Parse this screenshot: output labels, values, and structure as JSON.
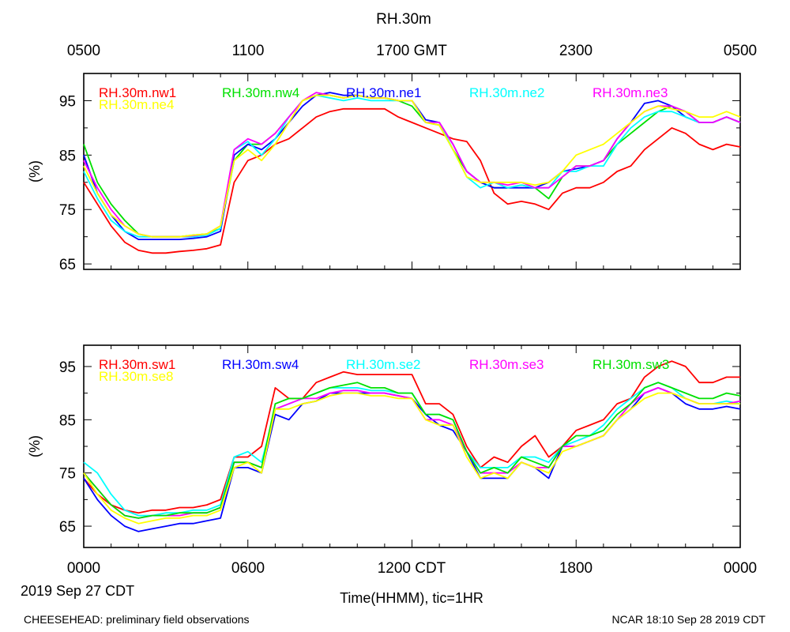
{
  "title": "RH.30m",
  "top_axis_ticks": [
    "0500",
    "1100",
    "1700 GMT",
    "2300",
    "0500"
  ],
  "bottom_axis_ticks": [
    "0000",
    "0600",
    "1200 CDT",
    "1800",
    "0000"
  ],
  "date_label": "2019 Sep 27 CDT",
  "xlabel": "Time(HHMM), tic=1HR",
  "footer_left": "CHEESEHEAD: preliminary field observations",
  "footer_right": "NCAR 18:10 Sep 28 2019 CDT",
  "chart_data": [
    {
      "type": "line",
      "ylabel": "(%)",
      "xlim": [
        0,
        24
      ],
      "ylim": [
        64,
        100
      ],
      "yticks": [
        65,
        75,
        85,
        95
      ],
      "x_unit": "hours since 0000 CDT",
      "x": [
        0,
        0.5,
        1,
        1.5,
        2,
        2.5,
        3,
        3.5,
        4,
        4.5,
        5,
        5.5,
        6,
        6.5,
        7,
        7.5,
        8,
        8.5,
        9,
        9.5,
        10,
        10.5,
        11,
        11.5,
        12,
        12.5,
        13,
        13.5,
        14,
        14.5,
        15,
        15.5,
        16,
        16.5,
        17,
        17.5,
        18,
        18.5,
        19,
        19.5,
        20,
        20.5,
        21,
        21.5,
        22,
        22.5,
        23,
        23.5,
        24
      ],
      "series": [
        {
          "name": "RH.30m.nw1",
          "color": "#ff0000",
          "values": [
            80,
            76,
            72,
            69,
            67.5,
            67,
            67,
            67.3,
            67.5,
            67.8,
            68.5,
            80,
            84,
            85,
            87,
            88,
            90,
            92,
            93,
            93.5,
            93.5,
            93.5,
            93.5,
            92,
            91,
            90,
            89,
            88,
            87.5,
            84,
            78,
            76,
            76.5,
            76,
            75,
            78,
            79,
            79,
            80,
            82,
            83,
            86,
            88,
            90,
            89,
            87,
            86,
            87,
            86.5
          ]
        },
        {
          "name": "RH.30m.nw4",
          "color": "#00e000",
          "values": [
            87,
            80,
            76,
            73,
            70.5,
            70,
            70,
            70,
            70.3,
            70.5,
            71.5,
            84,
            87,
            87,
            89,
            92,
            95,
            96,
            96,
            95.5,
            96,
            95.5,
            95.5,
            95,
            94,
            91,
            90.5,
            86,
            82,
            80,
            79,
            79,
            79.5,
            79,
            77,
            81,
            83,
            83,
            84,
            87,
            89,
            91,
            93,
            94,
            93,
            91,
            91,
            92,
            91
          ]
        },
        {
          "name": "RH.30m.ne1",
          "color": "#0000ff",
          "values": [
            85,
            78,
            74,
            71,
            69.5,
            69.5,
            69.5,
            69.5,
            69.7,
            70,
            71,
            85,
            87,
            86,
            88,
            91,
            94,
            96,
            96.5,
            96,
            96,
            95.5,
            95.5,
            95,
            95,
            91.5,
            91,
            87,
            82,
            80,
            79,
            79,
            79,
            79,
            80,
            82,
            82.5,
            83,
            84,
            88,
            91,
            94.5,
            95,
            94,
            92,
            91,
            91,
            92,
            91
          ]
        },
        {
          "name": "RH.30m.ne2",
          "color": "#00ffff",
          "values": [
            82,
            77,
            73,
            71,
            70,
            70,
            70,
            70,
            70,
            70.3,
            71.5,
            86,
            87.5,
            85,
            88,
            92,
            95,
            96,
            95.5,
            95,
            95.5,
            95,
            95,
            95,
            95,
            91,
            91,
            86,
            81,
            79,
            80,
            79,
            79.5,
            79,
            79,
            82,
            82,
            83,
            83,
            87,
            90,
            92,
            93,
            93,
            92,
            91,
            91,
            92,
            91
          ]
        },
        {
          "name": "RH.30m.ne3",
          "color": "#ff00ff",
          "values": [
            84,
            79,
            75,
            72,
            70.5,
            70,
            70,
            70,
            70.2,
            70.5,
            72,
            86,
            88,
            87,
            89,
            92,
            95,
            96.5,
            96,
            95.5,
            96,
            95.5,
            95.5,
            95,
            95,
            91,
            91,
            87,
            82,
            80,
            80,
            79.5,
            80,
            79,
            79,
            81,
            83,
            83,
            84,
            88,
            91,
            93,
            94,
            94,
            93,
            91,
            91,
            92,
            91
          ]
        },
        {
          "name": "RH.30m.ne4",
          "color": "#ffff00",
          "values": [
            83,
            78,
            74,
            72,
            70.5,
            70,
            70,
            70,
            70.3,
            70.5,
            72,
            84,
            86,
            84,
            87,
            91,
            95,
            96,
            96,
            95.5,
            96,
            95.5,
            95.5,
            95,
            95,
            91,
            90.5,
            86,
            81,
            80,
            80,
            80,
            80,
            79.5,
            80,
            82,
            85,
            86,
            87,
            89,
            91,
            93,
            94,
            93.5,
            93,
            92,
            92,
            93,
            92
          ]
        }
      ]
    },
    {
      "type": "line",
      "ylabel": "(%)",
      "xlim": [
        0,
        24
      ],
      "ylim": [
        61,
        99
      ],
      "yticks": [
        65,
        75,
        85,
        95
      ],
      "x_unit": "hours since 0000 CDT",
      "x": [
        0,
        0.5,
        1,
        1.5,
        2,
        2.5,
        3,
        3.5,
        4,
        4.5,
        5,
        5.5,
        6,
        6.5,
        7,
        7.5,
        8,
        8.5,
        9,
        9.5,
        10,
        10.5,
        11,
        11.5,
        12,
        12.5,
        13,
        13.5,
        14,
        14.5,
        15,
        15.5,
        16,
        16.5,
        17,
        17.5,
        18,
        18.5,
        19,
        19.5,
        20,
        20.5,
        21,
        21.5,
        22,
        22.5,
        23,
        23.5,
        24
      ],
      "series": [
        {
          "name": "RH.30m.sw1",
          "color": "#ff0000",
          "values": [
            74,
            71,
            69,
            68,
            67.5,
            68,
            68,
            68.5,
            68.5,
            69,
            70,
            78,
            78,
            80,
            91,
            89,
            89,
            92,
            93,
            94,
            93.5,
            93.5,
            93.5,
            93.5,
            93.5,
            88,
            88,
            86,
            80,
            76,
            78,
            77,
            80,
            82,
            78,
            80,
            83,
            84,
            85,
            88,
            89,
            93,
            95,
            96,
            95,
            92,
            92,
            93,
            93
          ]
        },
        {
          "name": "RH.30m.sw4",
          "color": "#0000ff",
          "values": [
            74,
            70,
            67,
            65,
            64,
            64.5,
            65,
            65.5,
            65.5,
            66,
            66.5,
            76,
            76,
            75,
            86,
            85,
            88,
            88.5,
            90,
            90,
            90,
            90,
            90,
            89.5,
            89,
            86,
            84,
            83,
            79,
            74,
            74,
            74,
            77,
            76,
            74,
            80,
            80,
            81,
            82,
            85,
            87,
            90,
            91,
            90,
            88,
            87,
            87,
            87.5,
            87
          ]
        },
        {
          "name": "RH.30m.se2",
          "color": "#00ffff",
          "values": [
            77,
            75,
            71,
            68,
            67,
            67,
            67.5,
            67.5,
            68,
            68,
            69,
            78,
            79,
            77,
            87,
            88,
            89,
            90,
            91,
            91,
            91,
            90.5,
            90.5,
            90,
            90,
            86,
            86,
            85,
            79,
            76,
            76,
            76,
            78,
            78,
            77,
            80,
            81,
            82,
            84,
            87,
            89,
            91,
            92,
            91,
            89,
            88,
            88,
            88.5,
            88
          ]
        },
        {
          "name": "RH.30m.se3",
          "color": "#ff00ff",
          "values": [
            75,
            72,
            69,
            67,
            66.5,
            67,
            67,
            67,
            67.5,
            67.5,
            68.5,
            77,
            77,
            76,
            87,
            88,
            89,
            89,
            90,
            90.5,
            90.5,
            90,
            90,
            89.5,
            89,
            85,
            85,
            84,
            79,
            75,
            75,
            75,
            77,
            76,
            76,
            80,
            80,
            81,
            82,
            85,
            88,
            90,
            91,
            90,
            89,
            88,
            88,
            88,
            88.5
          ]
        },
        {
          "name": "RH.30m.sw3",
          "color": "#00e000",
          "values": [
            75,
            72,
            69,
            67,
            66.5,
            67,
            67,
            67.5,
            67.5,
            67.5,
            68.5,
            77,
            77,
            76,
            88,
            89,
            89,
            90,
            91,
            91.5,
            92,
            91,
            91,
            90,
            90,
            86,
            86,
            85,
            79,
            75,
            76,
            75,
            78,
            77,
            76,
            80,
            82,
            82,
            83,
            86,
            88,
            91,
            92,
            91,
            90,
            89,
            89,
            90,
            89.5
          ]
        },
        {
          "name": "RH.30m.se8",
          "color": "#ffff00",
          "values": [
            75,
            71,
            68,
            66.5,
            65.5,
            66,
            66.5,
            66.5,
            67,
            67,
            68,
            76,
            77,
            75,
            87,
            87,
            88,
            88.5,
            89.5,
            90,
            90,
            89.5,
            89.5,
            89,
            89,
            85,
            84,
            84,
            78,
            74,
            75,
            74,
            77,
            76,
            75,
            79,
            80,
            81,
            82,
            85,
            87,
            89,
            90,
            90,
            89,
            88,
            88,
            88,
            88
          ]
        }
      ]
    }
  ]
}
